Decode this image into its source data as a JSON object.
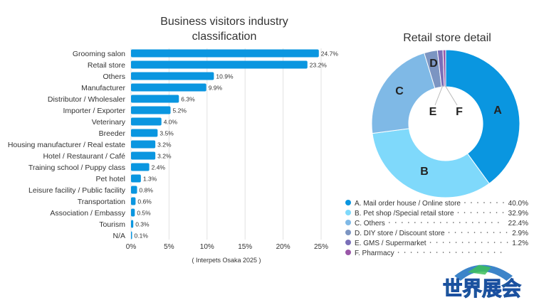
{
  "chart_data": [
    {
      "type": "bar",
      "orientation": "horizontal",
      "title": "Business visitors industry classification",
      "categories": [
        "Grooming salon",
        "Retail store",
        "Others",
        "Manufacturer",
        "Distributor / Wholesaler",
        "Importer / Exporter",
        "Veterinary",
        "Breeder",
        "Housing manufacturer / Real estate",
        "Hotel / Restaurant / Café",
        "Training school / Puppy class",
        "Pet hotel",
        "Leisure facility / Public facility",
        "Transportation",
        "Association / Embassy",
        "Tourism",
        "N/A"
      ],
      "values": [
        24.7,
        23.2,
        10.9,
        9.9,
        6.3,
        5.2,
        4.0,
        3.5,
        3.2,
        3.2,
        2.4,
        1.3,
        0.8,
        0.6,
        0.5,
        0.3,
        0.1
      ],
      "data_labels": [
        "24.7%",
        "23.2%",
        "10.9%",
        "9.9%",
        "6.3%",
        "5.2%",
        "4.0%",
        "3.5%",
        "3.2%",
        "3.2%",
        "2.4%",
        "1.3%",
        "0.8%",
        "0.6%",
        "0.5%",
        "0.3%",
        "0.1%"
      ],
      "xlim": [
        0,
        25
      ],
      "xticks": [
        "0%",
        "5%",
        "10%",
        "15%",
        "20%",
        "25%"
      ],
      "grid": true,
      "color": "#0a96e0",
      "source": "( Interpets Osaka 2025 )"
    },
    {
      "type": "pie",
      "donut": true,
      "title": "Retail store detail",
      "slices": [
        {
          "letter": "A",
          "legend": "A. Mail order house / Online store",
          "value": 40.0,
          "label": "40.0%",
          "color": "#0a96e0"
        },
        {
          "letter": "B",
          "legend": "B. Pet shop /Special retail store",
          "value": 32.9,
          "label": "32.9%",
          "color": "#7fd9fb"
        },
        {
          "letter": "C",
          "legend": "C. Others",
          "value": 22.4,
          "label": "22.4%",
          "color": "#7fb9e6"
        },
        {
          "letter": "D",
          "legend": "D. DIY store / Discount store",
          "value": 2.9,
          "label": "2.9%",
          "color": "#7c95c2"
        },
        {
          "letter": "E",
          "legend": "E. GMS / Supermarket",
          "value": 1.2,
          "label": "1.2%",
          "color": "#7a6fb8"
        },
        {
          "letter": "F",
          "legend": "F. Pharmacy",
          "value": 0.6,
          "label": "",
          "color": "#9a57a8"
        }
      ],
      "legend_placement": "bottom"
    }
  ],
  "watermark": "世界展会"
}
